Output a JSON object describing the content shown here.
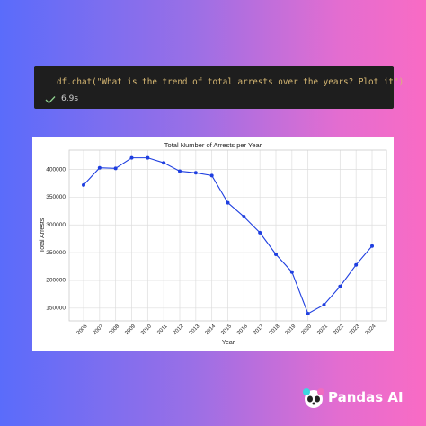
{
  "code_cell": {
    "code": "df.chat(\"What is the trend of total arrests over the years? Plot it\")",
    "duration": "6.9s"
  },
  "brand": "Pandas AI",
  "chart_data": {
    "type": "line",
    "title": "Total Number of Arrests per Year",
    "x_label": "Year",
    "y_label": "Total Arrests",
    "categories": [
      "2006",
      "2007",
      "2008",
      "2009",
      "2010",
      "2011",
      "2012",
      "2013",
      "2014",
      "2015",
      "2016",
      "2017",
      "2018",
      "2019",
      "2020",
      "2021",
      "2022",
      "2023",
      "2024"
    ],
    "series": [
      {
        "name": "Total Arrests",
        "color": "#1f3fe0",
        "values": [
          372000,
          403000,
          402000,
          421000,
          421000,
          412000,
          397000,
          394000,
          389000,
          340000,
          315000,
          286000,
          247000,
          215000,
          140000,
          156000,
          189000,
          228000,
          262000
        ]
      }
    ],
    "ylim": [
      127000,
      435000
    ],
    "yticks": [
      150000,
      200000,
      250000,
      300000,
      350000,
      400000
    ],
    "grid": true
  }
}
